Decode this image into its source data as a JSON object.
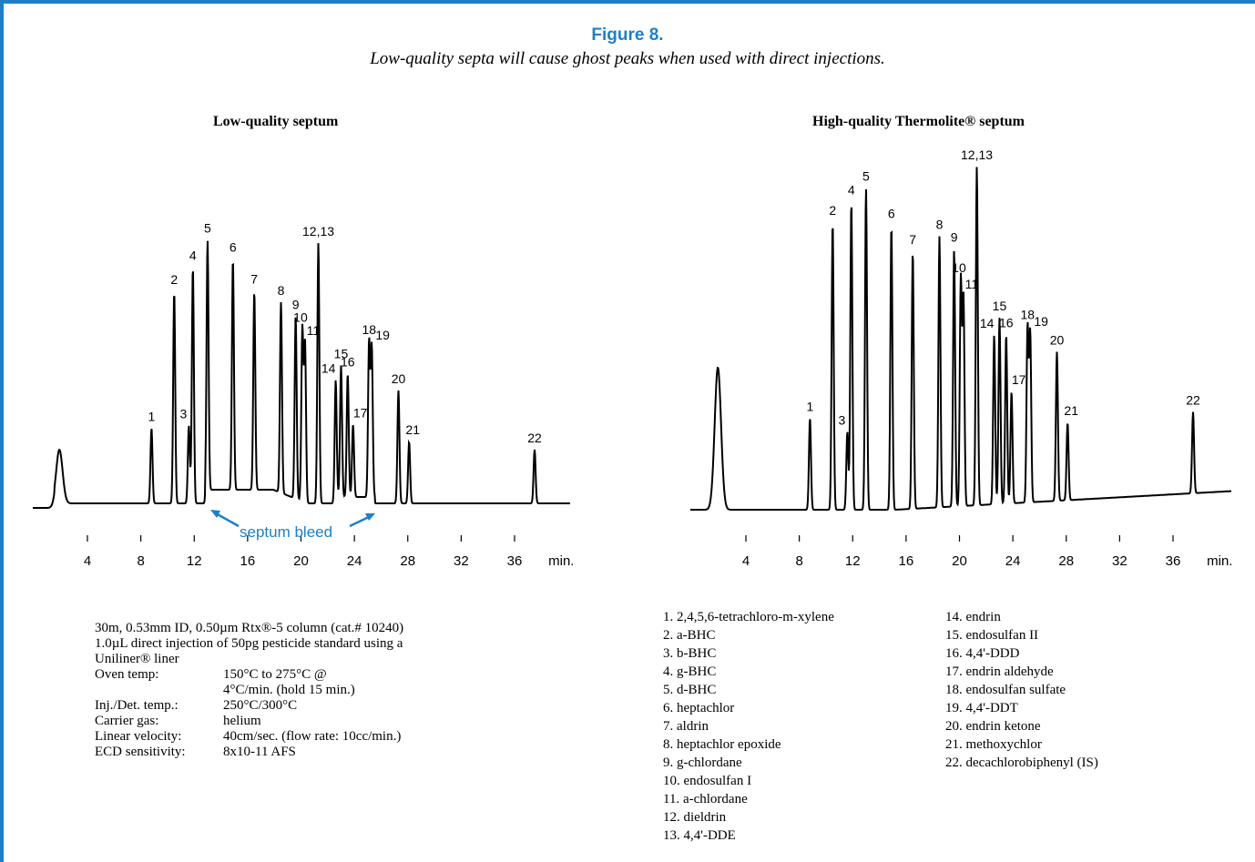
{
  "figure": {
    "title": "Figure 8.",
    "subtitle": "Low-quality septa will cause ghost peaks when used with direct injections."
  },
  "colors": {
    "accent": "#1f7fc6",
    "trace": "#000000"
  },
  "chart_data": [
    {
      "type": "line",
      "title": "Low-quality septum",
      "xlabel": "min.",
      "x_ticks": [
        4,
        8,
        12,
        16,
        20,
        24,
        28,
        32,
        36
      ],
      "xlim": [
        0,
        40
      ],
      "grid": false,
      "peaks": [
        {
          "label": "1",
          "rt": 8.8,
          "height": 0.28
        },
        {
          "label": "2",
          "rt": 10.5,
          "height": 0.79
        },
        {
          "label": "3",
          "rt": 11.6,
          "height": 0.29
        },
        {
          "label": "4",
          "rt": 11.9,
          "height": 0.88
        },
        {
          "label": "5",
          "rt": 13.0,
          "height": 0.93
        },
        {
          "label": "6",
          "rt": 14.9,
          "height": 0.86
        },
        {
          "label": "7",
          "rt": 16.5,
          "height": 0.74
        },
        {
          "label": "8",
          "rt": 18.5,
          "height": 0.71
        },
        {
          "label": "9",
          "rt": 19.6,
          "height": 0.68
        },
        {
          "label": "10",
          "rt": 20.1,
          "height": 0.65
        },
        {
          "label": "11",
          "rt": 20.3,
          "height": 0.6
        },
        {
          "label": "12,13",
          "rt": 21.3,
          "height": 0.97
        },
        {
          "label": "14",
          "rt": 22.6,
          "height": 0.46
        },
        {
          "label": "15",
          "rt": 23.0,
          "height": 0.49
        },
        {
          "label": "16",
          "rt": 23.5,
          "height": 0.46
        },
        {
          "label": "17",
          "rt": 23.9,
          "height": 0.27
        },
        {
          "label": "18",
          "rt": 25.1,
          "height": 0.58
        },
        {
          "label": "19",
          "rt": 25.3,
          "height": 0.56
        },
        {
          "label": "20",
          "rt": 27.3,
          "height": 0.42
        },
        {
          "label": "21",
          "rt": 28.1,
          "height": 0.23
        },
        {
          "label": "22",
          "rt": 37.5,
          "height": 0.2
        }
      ],
      "annotation": "septum bleed"
    },
    {
      "type": "line",
      "title": "High-quality Thermolite® septum",
      "xlabel": "min.",
      "x_ticks": [
        4,
        8,
        12,
        16,
        20,
        24,
        28,
        32,
        36
      ],
      "xlim": [
        0,
        40
      ],
      "grid": false,
      "peaks": [
        {
          "label": "1",
          "rt": 8.8,
          "height": 0.27
        },
        {
          "label": "2",
          "rt": 10.5,
          "height": 0.85
        },
        {
          "label": "3",
          "rt": 11.6,
          "height": 0.23
        },
        {
          "label": "4",
          "rt": 11.9,
          "height": 0.91
        },
        {
          "label": "5",
          "rt": 13.0,
          "height": 0.95
        },
        {
          "label": "6",
          "rt": 14.9,
          "height": 0.84
        },
        {
          "label": "7",
          "rt": 16.5,
          "height": 0.76
        },
        {
          "label": "8",
          "rt": 18.5,
          "height": 0.8
        },
        {
          "label": "9",
          "rt": 19.6,
          "height": 0.76
        },
        {
          "label": "10",
          "rt": 20.1,
          "height": 0.67
        },
        {
          "label": "11",
          "rt": 20.3,
          "height": 0.62
        },
        {
          "label": "12,13",
          "rt": 21.3,
          "height": 1.0
        },
        {
          "label": "14",
          "rt": 22.6,
          "height": 0.5
        },
        {
          "label": "15",
          "rt": 23.0,
          "height": 0.55
        },
        {
          "label": "16",
          "rt": 23.5,
          "height": 0.5
        },
        {
          "label": "17",
          "rt": 23.9,
          "height": 0.33
        },
        {
          "label": "18",
          "rt": 25.1,
          "height": 0.52
        },
        {
          "label": "19",
          "rt": 25.3,
          "height": 0.5
        },
        {
          "label": "20",
          "rt": 27.3,
          "height": 0.44
        },
        {
          "label": "21",
          "rt": 28.1,
          "height": 0.23
        },
        {
          "label": "22",
          "rt": 37.5,
          "height": 0.24
        }
      ]
    }
  ],
  "conditions": {
    "line1": "30m, 0.53mm ID, 0.50µm Rtx®-5 column (cat.# 10240)",
    "line2": "1.0µL direct injection of 50pg pesticide standard using a",
    "line3": "Uniliner® liner",
    "rows": [
      {
        "label": "Oven temp:",
        "value": "150°C to 275°C @"
      },
      {
        "label": "",
        "value": "4°C/min. (hold 15 min.)"
      },
      {
        "label": "Inj./Det. temp.:",
        "value": "250°C/300°C"
      },
      {
        "label": "Carrier gas:",
        "value": "helium"
      },
      {
        "label": "Linear velocity:",
        "value": "40cm/sec. (flow rate: 10cc/min.)"
      },
      {
        "label": "ECD sensitivity:",
        "value": "8x10-11 AFS"
      }
    ]
  },
  "peak_legend": {
    "col1": [
      "1. 2,4,5,6-tetrachloro-m-xylene",
      "2. a-BHC",
      "3. b-BHC",
      "4. g-BHC",
      "5. d-BHC",
      "6. heptachlor",
      "7. aldrin",
      "8. heptachlor epoxide",
      "9. g-chlordane",
      "10. endosulfan I",
      "11. a-chlordane",
      "12. dieldrin",
      "13. 4,4'-DDE"
    ],
    "col2": [
      "14. endrin",
      "15. endosulfan II",
      "16. 4,4'-DDD",
      "17. endrin aldehyde",
      "18. endosulfan sulfate",
      "19. 4,4'-DDT",
      "20. endrin ketone",
      "21. methoxychlor",
      "22. decachlorobiphenyl (IS)"
    ]
  }
}
